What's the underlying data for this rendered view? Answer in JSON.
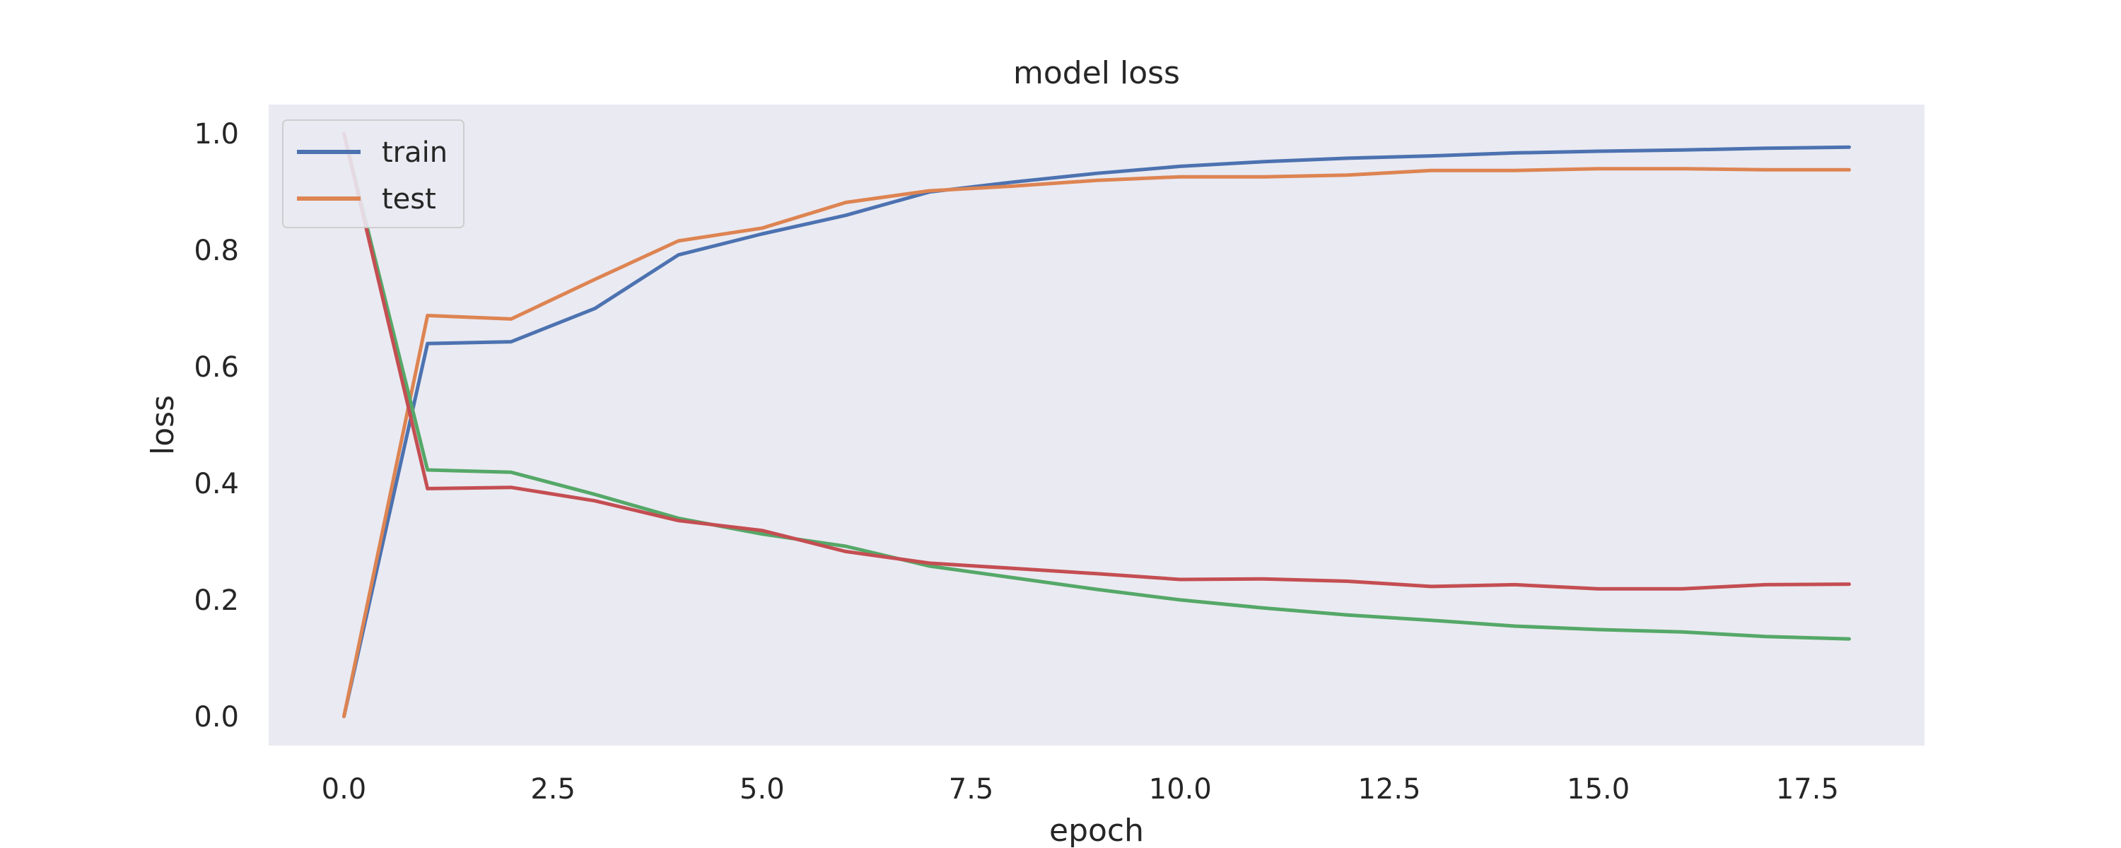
{
  "chart_data": {
    "type": "line",
    "title": "model loss",
    "xlabel": "epoch",
    "ylabel": "loss",
    "xlim": [
      -0.9,
      18.9
    ],
    "ylim": [
      -0.05,
      1.05
    ],
    "grid": false,
    "legend_position": "top-left",
    "x": [
      0,
      1,
      2,
      3,
      4,
      5,
      6,
      7,
      8,
      9,
      10,
      11,
      12,
      13,
      14,
      15,
      16,
      17,
      18
    ],
    "x_ticks": [
      0.0,
      2.5,
      5.0,
      7.5,
      10.0,
      12.5,
      15.0,
      17.5
    ],
    "x_tick_labels": [
      "0.0",
      "2.5",
      "5.0",
      "7.5",
      "10.0",
      "12.5",
      "15.0",
      "17.5"
    ],
    "y_ticks": [
      0.0,
      0.2,
      0.4,
      0.6,
      0.8,
      1.0
    ],
    "y_tick_labels": [
      "0.0",
      "0.2",
      "0.4",
      "0.6",
      "0.8",
      "1.0"
    ],
    "series": [
      {
        "name": "train",
        "color": "#4c72b0",
        "values": [
          0.0,
          0.64,
          0.643,
          0.7,
          0.792,
          0.828,
          0.86,
          0.9,
          0.917,
          0.932,
          0.944,
          0.952,
          0.958,
          0.962,
          0.967,
          0.97,
          0.972,
          0.975,
          0.977
        ]
      },
      {
        "name": "test",
        "color": "#dd8452",
        "values": [
          0.0,
          0.688,
          0.682,
          0.75,
          0.816,
          0.838,
          0.882,
          0.902,
          0.91,
          0.92,
          0.926,
          0.926,
          0.929,
          0.937,
          0.937,
          0.94,
          0.94,
          0.938,
          0.938
        ]
      },
      {
        "color": "#55a868",
        "values": [
          1.0,
          0.423,
          0.419,
          0.381,
          0.34,
          0.313,
          0.292,
          0.258,
          0.238,
          0.218,
          0.2,
          0.186,
          0.174,
          0.165,
          0.155,
          0.149,
          0.145,
          0.137,
          0.133
        ]
      },
      {
        "color": "#c44e52",
        "values": [
          1.0,
          0.391,
          0.393,
          0.37,
          0.336,
          0.319,
          0.283,
          0.263,
          0.254,
          0.245,
          0.235,
          0.236,
          0.232,
          0.223,
          0.226,
          0.219,
          0.219,
          0.226,
          0.227
        ]
      }
    ]
  }
}
